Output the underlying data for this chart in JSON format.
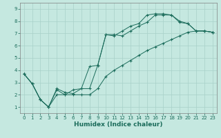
{
  "title": "",
  "xlabel": "Humidex (Indice chaleur)",
  "ylabel": "",
  "bg_color": "#c5e8e0",
  "line_color": "#1a6b5a",
  "grid_color": "#a8d0c8",
  "xlim": [
    -0.5,
    23.5
  ],
  "ylim": [
    0.5,
    9.5
  ],
  "xticks": [
    0,
    1,
    2,
    3,
    4,
    5,
    6,
    7,
    8,
    9,
    10,
    11,
    12,
    13,
    14,
    15,
    16,
    17,
    18,
    19,
    20,
    21,
    22,
    23
  ],
  "yticks": [
    1,
    2,
    3,
    4,
    5,
    6,
    7,
    8,
    9
  ],
  "line1_x": [
    0,
    1,
    2,
    3,
    4,
    5,
    6,
    7,
    8,
    9,
    10,
    11,
    12,
    13,
    14,
    15,
    16,
    17,
    18,
    19,
    20,
    21,
    22,
    23
  ],
  "line1_y": [
    3.7,
    2.9,
    1.6,
    1.0,
    2.5,
    2.2,
    2.1,
    2.5,
    4.3,
    4.4,
    6.9,
    6.8,
    7.2,
    7.6,
    7.8,
    8.5,
    8.6,
    8.6,
    8.5,
    7.9,
    7.8,
    7.2,
    7.2,
    7.1
  ],
  "line2_x": [
    0,
    1,
    2,
    3,
    4,
    5,
    6,
    7,
    8,
    9,
    10,
    11,
    12,
    13,
    14,
    15,
    16,
    17,
    18,
    19,
    20,
    21,
    22,
    23
  ],
  "line2_y": [
    3.7,
    2.9,
    1.6,
    1.0,
    2.4,
    2.0,
    2.4,
    2.5,
    2.5,
    4.4,
    6.9,
    6.9,
    6.8,
    7.2,
    7.6,
    7.9,
    8.5,
    8.5,
    8.5,
    8.0,
    7.8,
    7.2,
    7.2,
    7.1
  ],
  "line3_x": [
    0,
    1,
    2,
    3,
    4,
    5,
    6,
    7,
    8,
    9,
    10,
    11,
    12,
    13,
    14,
    15,
    16,
    17,
    18,
    19,
    20,
    21,
    22,
    23
  ],
  "line3_y": [
    3.7,
    2.9,
    1.6,
    1.0,
    2.0,
    2.0,
    2.0,
    2.0,
    2.0,
    2.5,
    3.5,
    4.0,
    4.4,
    4.8,
    5.2,
    5.6,
    5.9,
    6.2,
    6.5,
    6.8,
    7.1,
    7.2,
    7.2,
    7.1
  ],
  "tick_fontsize": 5.0,
  "xlabel_fontsize": 6.5,
  "marker_size": 3.0,
  "linewidth": 0.7
}
